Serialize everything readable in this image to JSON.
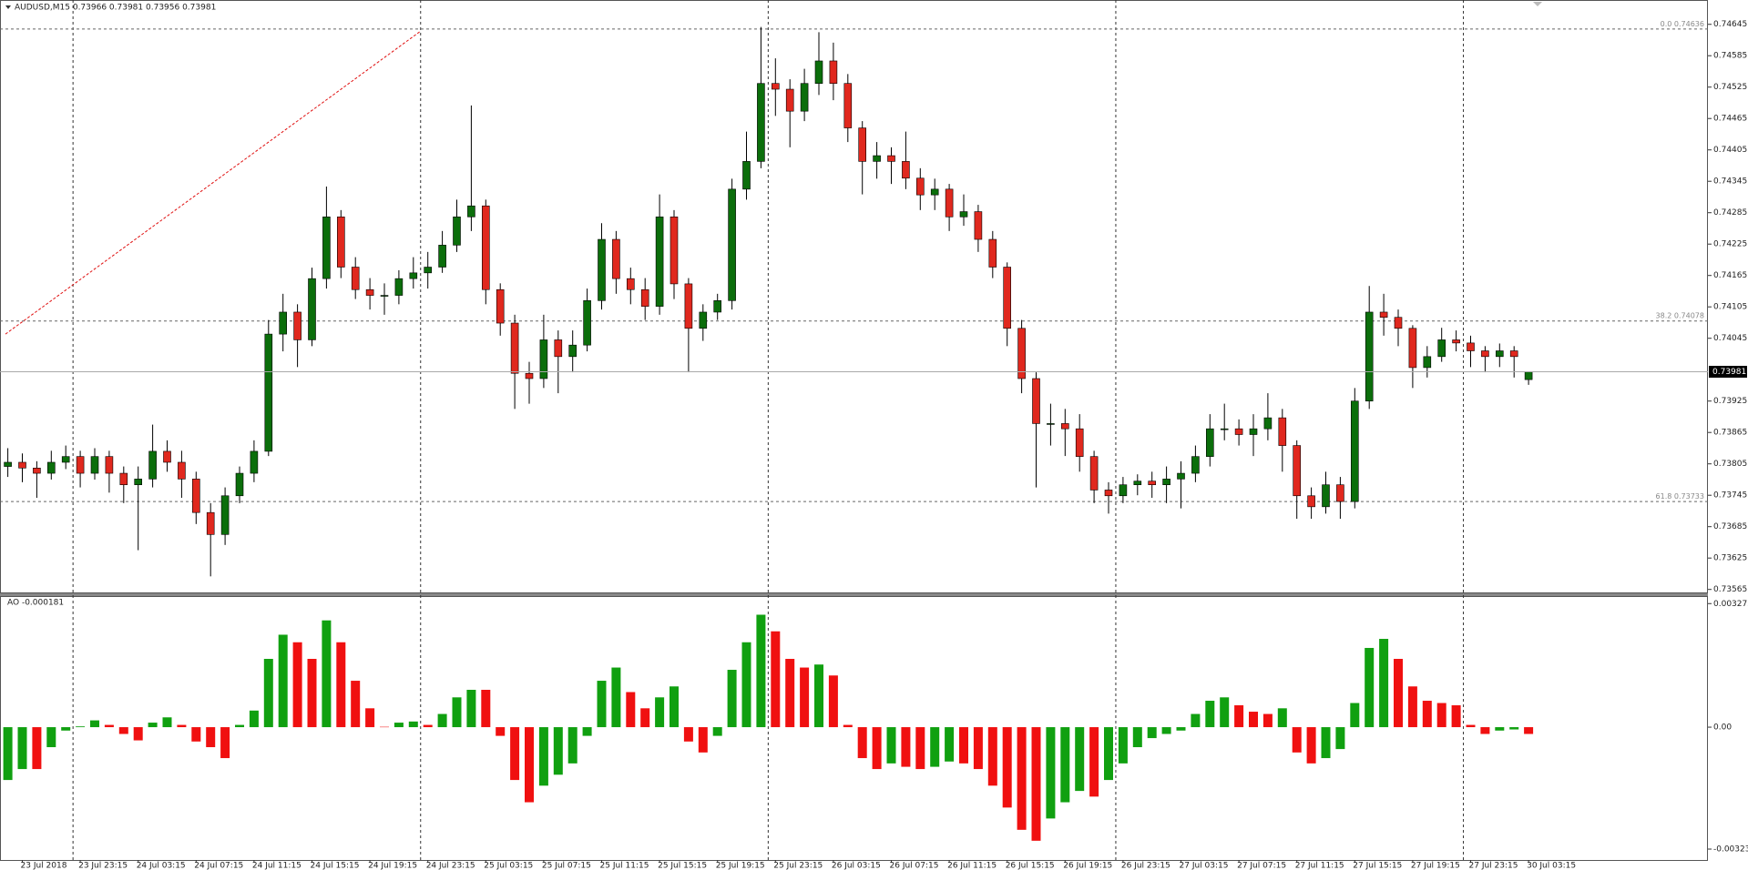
{
  "chart_data": {
    "type": "candlestick",
    "title": "AUDUSD,M15  0.73966 0.73981 0.73956 0.73981",
    "categories": [
      null,
      "23 Jul 2018",
      null,
      null,
      null,
      "23 Jul 23:15",
      null,
      null,
      null,
      "24 Jul 03:15",
      null,
      null,
      null,
      "24 Jul 07:15",
      null,
      null,
      null,
      "24 Jul 11:15",
      null,
      null,
      null,
      "24 Jul 15:15",
      null,
      null,
      null,
      "24 Jul 19:15",
      null,
      null,
      null,
      "24 Jul 23:15",
      null,
      null,
      null,
      "25 Jul 03:15",
      null,
      null,
      null,
      "25 Jul 07:15",
      null,
      null,
      null,
      "25 Jul 11:15",
      null,
      null,
      null,
      "25 Jul 15:15",
      null,
      null,
      null,
      "25 Jul 19:15",
      null,
      null,
      null,
      "25 Jul 23:15",
      null,
      null,
      null,
      "26 Jul 03:15",
      null,
      null,
      null,
      "26 Jul 07:15",
      null,
      null,
      null,
      "26 Jul 11:15",
      null,
      null,
      null,
      "26 Jul 15:15",
      null,
      null,
      null,
      "26 Jul 19:15",
      null,
      null,
      null,
      "26 Jul 23:15",
      null,
      null,
      null,
      "27 Jul 03:15",
      null,
      null,
      null,
      "27 Jul 07:15",
      null,
      null,
      null,
      "27 Jul 11:15",
      null,
      null,
      null,
      "27 Jul 15:15",
      null,
      null,
      null,
      "27 Jul 19:15",
      null,
      null,
      null,
      "27 Jul 23:15",
      null,
      null,
      null,
      "30 Jul 03:15"
    ],
    "candles": [
      [
        0.738,
        0.73835,
        0.7378,
        0.73808
      ],
      [
        0.73808,
        0.73825,
        0.7377,
        0.73797
      ],
      [
        0.73797,
        0.7381,
        0.7374,
        0.73787
      ],
      [
        0.73787,
        0.7383,
        0.73775,
        0.73808
      ],
      [
        0.73808,
        0.7384,
        0.73795,
        0.73819
      ],
      [
        0.73819,
        0.7383,
        0.7376,
        0.73787
      ],
      [
        0.73787,
        0.73835,
        0.73775,
        0.73819
      ],
      [
        0.73819,
        0.7383,
        0.7375,
        0.73787
      ],
      [
        0.73787,
        0.738,
        0.7373,
        0.73765
      ],
      [
        0.73765,
        0.738,
        0.7364,
        0.73776
      ],
      [
        0.73776,
        0.7388,
        0.7376,
        0.73829
      ],
      [
        0.73829,
        0.7385,
        0.7379,
        0.73808
      ],
      [
        0.73808,
        0.7383,
        0.7374,
        0.73776
      ],
      [
        0.73776,
        0.7379,
        0.7369,
        0.73712
      ],
      [
        0.73712,
        0.7373,
        0.7359,
        0.7367
      ],
      [
        0.7367,
        0.7376,
        0.7365,
        0.73744
      ],
      [
        0.73744,
        0.738,
        0.7373,
        0.73787
      ],
      [
        0.73787,
        0.7385,
        0.7377,
        0.73829
      ],
      [
        0.73829,
        0.7408,
        0.7382,
        0.74053
      ],
      [
        0.74053,
        0.7413,
        0.7402,
        0.74095
      ],
      [
        0.74095,
        0.7411,
        0.7399,
        0.74042
      ],
      [
        0.74042,
        0.7418,
        0.7403,
        0.74159
      ],
      [
        0.74159,
        0.74335,
        0.7414,
        0.74277
      ],
      [
        0.74277,
        0.7429,
        0.7416,
        0.74181
      ],
      [
        0.74181,
        0.742,
        0.7412,
        0.74138
      ],
      [
        0.74138,
        0.7416,
        0.741,
        0.74127
      ],
      [
        0.74127,
        0.7415,
        0.7409,
        0.74127
      ],
      [
        0.74127,
        0.74175,
        0.7411,
        0.74159
      ],
      [
        0.74159,
        0.742,
        0.7414,
        0.7417
      ],
      [
        0.7417,
        0.7421,
        0.7414,
        0.74181
      ],
      [
        0.74181,
        0.7425,
        0.7417,
        0.74223
      ],
      [
        0.74223,
        0.7431,
        0.7421,
        0.74277
      ],
      [
        0.74277,
        0.7449,
        0.7425,
        0.74298
      ],
      [
        0.74298,
        0.7431,
        0.7411,
        0.74138
      ],
      [
        0.74138,
        0.7415,
        0.7405,
        0.74074
      ],
      [
        0.74074,
        0.7409,
        0.7391,
        0.73978
      ],
      [
        0.73978,
        0.74,
        0.7392,
        0.73968
      ],
      [
        0.73968,
        0.7409,
        0.7395,
        0.74042
      ],
      [
        0.74042,
        0.7406,
        0.7394,
        0.7401
      ],
      [
        0.7401,
        0.7406,
        0.7398,
        0.74032
      ],
      [
        0.74032,
        0.7414,
        0.7402,
        0.74117
      ],
      [
        0.74117,
        0.74265,
        0.741,
        0.74234
      ],
      [
        0.74234,
        0.7425,
        0.7413,
        0.74159
      ],
      [
        0.74159,
        0.7418,
        0.7411,
        0.74138
      ],
      [
        0.74138,
        0.7416,
        0.7408,
        0.74106
      ],
      [
        0.74106,
        0.7432,
        0.7409,
        0.74277
      ],
      [
        0.74277,
        0.7429,
        0.7412,
        0.74149
      ],
      [
        0.74149,
        0.7416,
        0.7398,
        0.74064
      ],
      [
        0.74064,
        0.7411,
        0.7404,
        0.74095
      ],
      [
        0.74095,
        0.7413,
        0.7408,
        0.74117
      ],
      [
        0.74117,
        0.7435,
        0.741,
        0.7433
      ],
      [
        0.7433,
        0.7444,
        0.7431,
        0.74383
      ],
      [
        0.74383,
        0.7464,
        0.7437,
        0.74532
      ],
      [
        0.74532,
        0.7458,
        0.7447,
        0.74521
      ],
      [
        0.74521,
        0.7454,
        0.7441,
        0.74479
      ],
      [
        0.74479,
        0.7456,
        0.7446,
        0.74532
      ],
      [
        0.74532,
        0.7463,
        0.7451,
        0.74575
      ],
      [
        0.74575,
        0.7461,
        0.745,
        0.74532
      ],
      [
        0.74532,
        0.7455,
        0.7442,
        0.74447
      ],
      [
        0.74447,
        0.7446,
        0.7432,
        0.74383
      ],
      [
        0.74383,
        0.7442,
        0.7435,
        0.74394
      ],
      [
        0.74394,
        0.7441,
        0.7434,
        0.74383
      ],
      [
        0.74383,
        0.7444,
        0.7433,
        0.74351
      ],
      [
        0.74351,
        0.7437,
        0.7429,
        0.74319
      ],
      [
        0.74319,
        0.7435,
        0.7429,
        0.7433
      ],
      [
        0.7433,
        0.7434,
        0.7425,
        0.74277
      ],
      [
        0.74277,
        0.7432,
        0.7426,
        0.74287
      ],
      [
        0.74287,
        0.743,
        0.7421,
        0.74234
      ],
      [
        0.74234,
        0.7425,
        0.7416,
        0.74181
      ],
      [
        0.74181,
        0.7419,
        0.7403,
        0.74064
      ],
      [
        0.74064,
        0.7408,
        0.7394,
        0.73968
      ],
      [
        0.73968,
        0.7398,
        0.7376,
        0.73882
      ],
      [
        0.73882,
        0.7392,
        0.7384,
        0.73882
      ],
      [
        0.73882,
        0.7391,
        0.7382,
        0.73872
      ],
      [
        0.73872,
        0.739,
        0.7379,
        0.73819
      ],
      [
        0.73819,
        0.7383,
        0.7373,
        0.73755
      ],
      [
        0.73755,
        0.7377,
        0.7371,
        0.73744
      ],
      [
        0.73744,
        0.7378,
        0.7373,
        0.73765
      ],
      [
        0.73765,
        0.73785,
        0.73745,
        0.73772
      ],
      [
        0.73772,
        0.7379,
        0.7374,
        0.73765
      ],
      [
        0.73765,
        0.738,
        0.7373,
        0.73776
      ],
      [
        0.73776,
        0.7381,
        0.7372,
        0.73787
      ],
      [
        0.73787,
        0.7384,
        0.7377,
        0.73819
      ],
      [
        0.73819,
        0.739,
        0.738,
        0.73872
      ],
      [
        0.73872,
        0.7392,
        0.7385,
        0.73872
      ],
      [
        0.73872,
        0.7389,
        0.7384,
        0.73861
      ],
      [
        0.73861,
        0.739,
        0.7382,
        0.73872
      ],
      [
        0.73872,
        0.7394,
        0.7385,
        0.73893
      ],
      [
        0.73893,
        0.7391,
        0.7379,
        0.7384
      ],
      [
        0.7384,
        0.7385,
        0.737,
        0.73744
      ],
      [
        0.73744,
        0.7376,
        0.737,
        0.73723
      ],
      [
        0.73723,
        0.7379,
        0.7371,
        0.73765
      ],
      [
        0.73765,
        0.7378,
        0.737,
        0.73733
      ],
      [
        0.73733,
        0.7395,
        0.7372,
        0.73925
      ],
      [
        0.73925,
        0.74145,
        0.7391,
        0.74095
      ],
      [
        0.74095,
        0.7413,
        0.7405,
        0.74085
      ],
      [
        0.74085,
        0.741,
        0.7403,
        0.74064
      ],
      [
        0.74064,
        0.7407,
        0.7395,
        0.73989
      ],
      [
        0.73989,
        0.7403,
        0.7397,
        0.7401
      ],
      [
        0.7401,
        0.74065,
        0.74,
        0.74042
      ],
      [
        0.74042,
        0.7406,
        0.7402,
        0.74036
      ],
      [
        0.74036,
        0.7405,
        0.7399,
        0.74021
      ],
      [
        0.74021,
        0.7403,
        0.7398,
        0.7401
      ],
      [
        0.7401,
        0.74035,
        0.7399,
        0.74021
      ],
      [
        0.74021,
        0.7403,
        0.7397,
        0.7401
      ],
      [
        0.73966,
        0.73981,
        0.73956,
        0.73981
      ]
    ],
    "up_color": "#0b6e0b",
    "down_color": "#e0281e",
    "ylim": [
      0.73561,
      0.74688
    ],
    "yticks": [
      0.74645,
      0.74585,
      0.74525,
      0.74465,
      0.74405,
      0.74345,
      0.74285,
      0.74225,
      0.74165,
      0.74105,
      0.74045,
      0.73925,
      0.73865,
      0.73805,
      0.73745,
      0.73685,
      0.73625,
      0.73565
    ],
    "fib_levels": [
      {
        "level": "0.0",
        "price": 0.74636
      },
      {
        "level": "38.2",
        "price": 0.74078
      },
      {
        "level": "61.8",
        "price": 0.73733
      }
    ],
    "trendline": [
      0.74053,
      0.74632
    ],
    "ao": {
      "label": "AO -0.000181",
      "values": [
        -0.0014,
        -0.00111,
        -0.00111,
        -0.00053,
        -9e-05,
        2e-05,
        0.00018,
        6e-05,
        -0.00018,
        -0.00035,
        0.00012,
        0.00026,
        6e-05,
        -0.00038,
        -0.00053,
        -0.00082,
        6e-05,
        0.00044,
        0.00181,
        0.00245,
        0.00225,
        0.00181,
        0.00283,
        0.00225,
        0.00123,
        0.0005,
        1e-05,
        0.00012,
        0.00015,
        6e-05,
        0.00035,
        0.00079,
        0.00099,
        0.00099,
        -0.00023,
        -0.0014,
        -0.00199,
        -0.00155,
        -0.00126,
        -0.00096,
        -0.00023,
        0.00123,
        0.00158,
        0.00093,
        0.0005,
        0.00079,
        0.00108,
        -0.00038,
        -0.00067,
        -0.00023,
        0.00152,
        0.00225,
        0.00298,
        0.00254,
        0.00181,
        0.00158,
        0.00166,
        0.00137,
        6e-05,
        -0.00082,
        -0.00111,
        -0.00096,
        -0.00105,
        -0.00111,
        -0.00105,
        -0.00091,
        -0.00096,
        -0.00111,
        -0.00155,
        -0.00213,
        -0.00272,
        -0.00301,
        -0.00242,
        -0.00199,
        -0.00169,
        -0.00184,
        -0.0014,
        -0.00096,
        -0.00053,
        -0.00029,
        -0.00018,
        -9e-05,
        0.00035,
        0.0007,
        0.00079,
        0.00058,
        0.00041,
        0.00035,
        0.0005,
        -0.00067,
        -0.00096,
        -0.00082,
        -0.00058,
        0.00064,
        0.0021,
        0.00234,
        0.00181,
        0.00108,
        0.0007,
        0.00064,
        0.00058,
        6e-05,
        -0.00018,
        -9e-05,
        -6e-05,
        -0.00018
      ],
      "up_color": "#10a010",
      "down_color": "#f01010",
      "ylim": [
        -0.00352,
        0.00345
      ],
      "yticks": [
        0.003275,
        {
          "value": 0,
          "label": "0.00"
        },
        -0.003231
      ]
    }
  }
}
